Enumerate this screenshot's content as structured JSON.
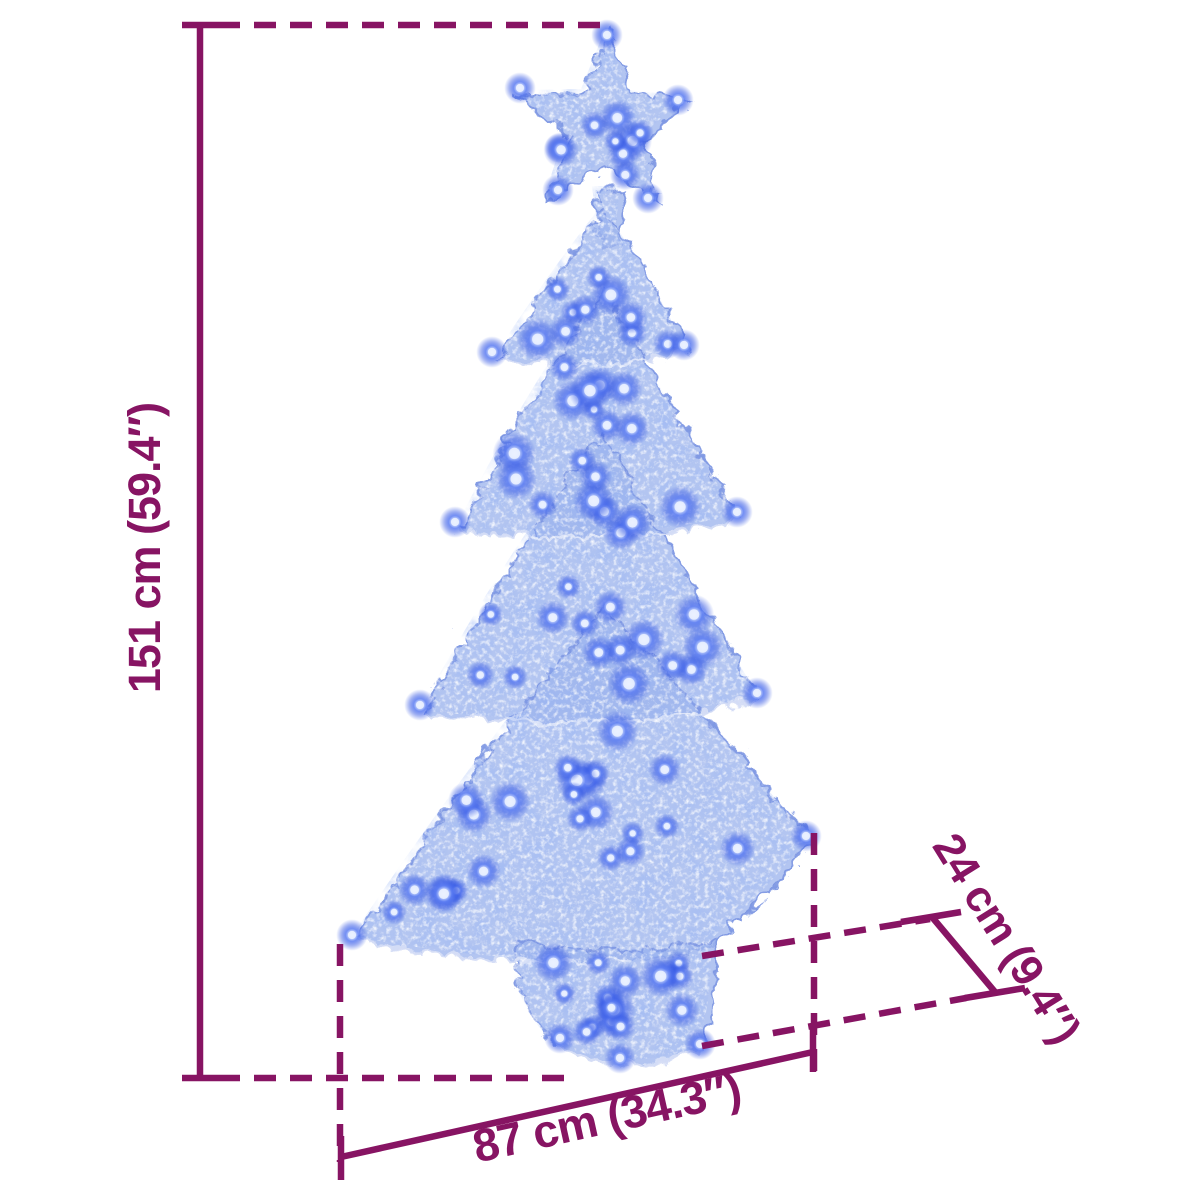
{
  "colors": {
    "background": "#ffffff",
    "dimension_accent": "#871463",
    "mesh_blue": "#9db5ed",
    "led_blue": "#2e52e3"
  },
  "dimension_labels": {
    "height": "151 cm (59.4″)",
    "width": "87 cm (34.3″)",
    "depth": "24 cm (9.4″)"
  }
}
